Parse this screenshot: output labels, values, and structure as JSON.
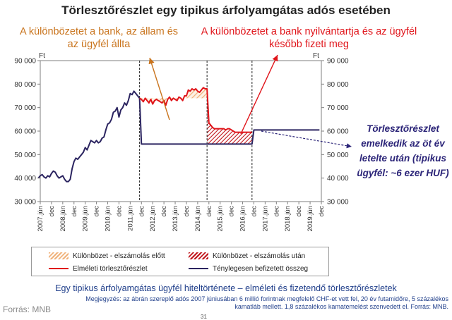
{
  "title": "Törlesztőrészlet egy tipikus árfolyamgátas adós esetében",
  "annotations": {
    "left": "A különbözetet a bank, az állam és az ügyfél állta",
    "right": "A különbözetet a bank nyilvántartja és az ügyfél később fizeti meg",
    "side": "Törlesztőrészlet emelkedik az öt év letelte után (tipikus ügyfél: ~6 ezer HUF)"
  },
  "axis_unit_left": "Ft",
  "axis_unit_right": "Ft",
  "legend": {
    "hatch_orange": "Különbözet - elszámolás előtt",
    "hatch_red": "Különbözet - elszámolás után",
    "line_red": "Elméleti törlesztőrészlet",
    "line_navy": "Ténylegesen befizetett összeg"
  },
  "subtitle": "Egy tipikus árfolyamgátas ügyfél hiteltörténete – elméleti és fizetendő törlesztőrészletek",
  "note": "Megjegyzés: az ábrán szereplő adós 2007 júniusában 6 millió forintnak megfelelő CHF-et vett fel, 20 év futamidőre, 5 százalékos kamatláb mellett. 1,8 százalékos kamatemelést szenvedett el. Forrás: MNB.",
  "source": "Forrás: MNB",
  "page_number": "31",
  "colors": {
    "navy": "#2b2460",
    "red": "#e0141a",
    "orange": "#f0b27a",
    "dark_red": "#c0141a",
    "annotation_orange": "#c9741d",
    "annotation_navy": "#2b2478"
  },
  "chart_data": {
    "type": "line",
    "x_tick_labels": [
      "2007.jún",
      "dec",
      "2008.jún",
      "dec",
      "2009.jún",
      "dec",
      "2010.jún",
      "dec",
      "2011.jún",
      "dec",
      "2012.jún",
      "dec",
      "2013.jún",
      "dec",
      "2014.jún",
      "dec",
      "2015.jún",
      "dec",
      "2016.jún",
      "dec",
      "2017.jún",
      "dec",
      "2018.jún",
      "dec",
      "2019.jún",
      "dec"
    ],
    "ylim": [
      30000,
      90000
    ],
    "y_ticks": [
      30000,
      40000,
      50000,
      60000,
      70000,
      80000,
      90000
    ],
    "y_tick_labels": [
      "30 000",
      "40 000",
      "50 000",
      "60 000",
      "70 000",
      "80 000",
      "90 000"
    ],
    "event_markers": [
      "2011-12",
      "2014-12",
      "2016-12"
    ],
    "series": [
      {
        "name": "Elméleti törlesztőrészlet",
        "x": [
          "2011-12",
          "2012-01",
          "2012-02",
          "2012-03",
          "2012-04",
          "2012-05",
          "2012-06",
          "2012-07",
          "2012-08",
          "2012-09",
          "2012-10",
          "2012-11",
          "2012-12",
          "2013-01",
          "2013-02",
          "2013-03",
          "2013-04",
          "2013-05",
          "2013-06",
          "2013-07",
          "2013-08",
          "2013-09",
          "2013-10",
          "2013-11",
          "2013-12",
          "2014-01",
          "2014-02",
          "2014-03",
          "2014-04",
          "2014-05",
          "2014-06",
          "2014-07",
          "2014-08",
          "2014-09",
          "2014-10",
          "2014-11",
          "2014-12",
          "2015-01",
          "2015-02",
          "2015-03",
          "2015-04",
          "2015-05",
          "2015-06",
          "2015-07",
          "2015-08",
          "2015-09",
          "2015-10",
          "2015-11",
          "2015-12",
          "2016-01",
          "2016-02",
          "2016-03",
          "2016-04",
          "2016-05",
          "2016-06",
          "2016-07",
          "2016-08",
          "2016-09",
          "2016-10",
          "2016-11",
          "2016-12"
        ],
        "y": [
          74000,
          73500,
          72500,
          74000,
          73000,
          72000,
          73500,
          71500,
          73000,
          73500,
          73000,
          72500,
          72000,
          73000,
          71000,
          73500,
          74500,
          73000,
          74000,
          73500,
          73000,
          74500,
          74000,
          73000,
          75000,
          75000,
          77500,
          77000,
          78000,
          77500,
          78000,
          77000,
          76500,
          77500,
          78500,
          78000,
          78000,
          63500,
          62500,
          61500,
          61000,
          61000,
          61000,
          61000,
          61000,
          61000,
          60500,
          61000,
          61000,
          60500,
          60000,
          59500,
          59500,
          59500,
          59500,
          59500,
          59500,
          59500,
          59500,
          59500,
          59500
        ]
      },
      {
        "name": "Ténylegesen befizetett összeg",
        "x": [
          "2007-06",
          "2007-07",
          "2007-08",
          "2007-09",
          "2007-10",
          "2007-11",
          "2007-12",
          "2008-01",
          "2008-02",
          "2008-03",
          "2008-04",
          "2008-05",
          "2008-06",
          "2008-07",
          "2008-08",
          "2008-09",
          "2008-10",
          "2008-11",
          "2008-12",
          "2009-01",
          "2009-02",
          "2009-03",
          "2009-04",
          "2009-05",
          "2009-06",
          "2009-07",
          "2009-08",
          "2009-09",
          "2009-10",
          "2009-11",
          "2009-12",
          "2010-01",
          "2010-02",
          "2010-03",
          "2010-04",
          "2010-05",
          "2010-06",
          "2010-07",
          "2010-08",
          "2010-09",
          "2010-10",
          "2010-11",
          "2010-12",
          "2011-01",
          "2011-02",
          "2011-03",
          "2011-04",
          "2011-05",
          "2011-06",
          "2011-07",
          "2011-08",
          "2011-09",
          "2011-10",
          "2011-11",
          "2011-12",
          "2012-01",
          "2014-12",
          "2015-01",
          "2016-12",
          "2017-01",
          "2019-12"
        ],
        "y": [
          40000,
          41000,
          41500,
          40500,
          40000,
          41000,
          40500,
          42000,
          43000,
          42500,
          41000,
          40000,
          40500,
          41000,
          39500,
          38500,
          38500,
          39500,
          44000,
          47000,
          48500,
          48000,
          49000,
          50000,
          51000,
          53000,
          52000,
          54000,
          56000,
          55500,
          55000,
          56000,
          55000,
          55500,
          57000,
          57500,
          60500,
          63000,
          63500,
          65000,
          68000,
          68500,
          70000,
          66000,
          69000,
          70000,
          72000,
          71000,
          73000,
          76000,
          75500,
          77000,
          76000,
          75000,
          74000,
          54500,
          54500,
          54500,
          54500,
          60500,
          60500
        ]
      }
    ],
    "filled_areas": [
      {
        "name": "Különbözet - elszámolás előtt",
        "from": "2011-12",
        "to": "2014-12",
        "between": [
          "Ténylegesen befizetett összeg",
          "Elméleti törlesztőrészlet"
        ]
      },
      {
        "name": "Különbözet - elszámolás után",
        "from": "2014-12",
        "to": "2016-12",
        "between": [
          "Ténylegesen befizetett összeg",
          "Elméleti törlesztőrészlet"
        ]
      }
    ]
  }
}
